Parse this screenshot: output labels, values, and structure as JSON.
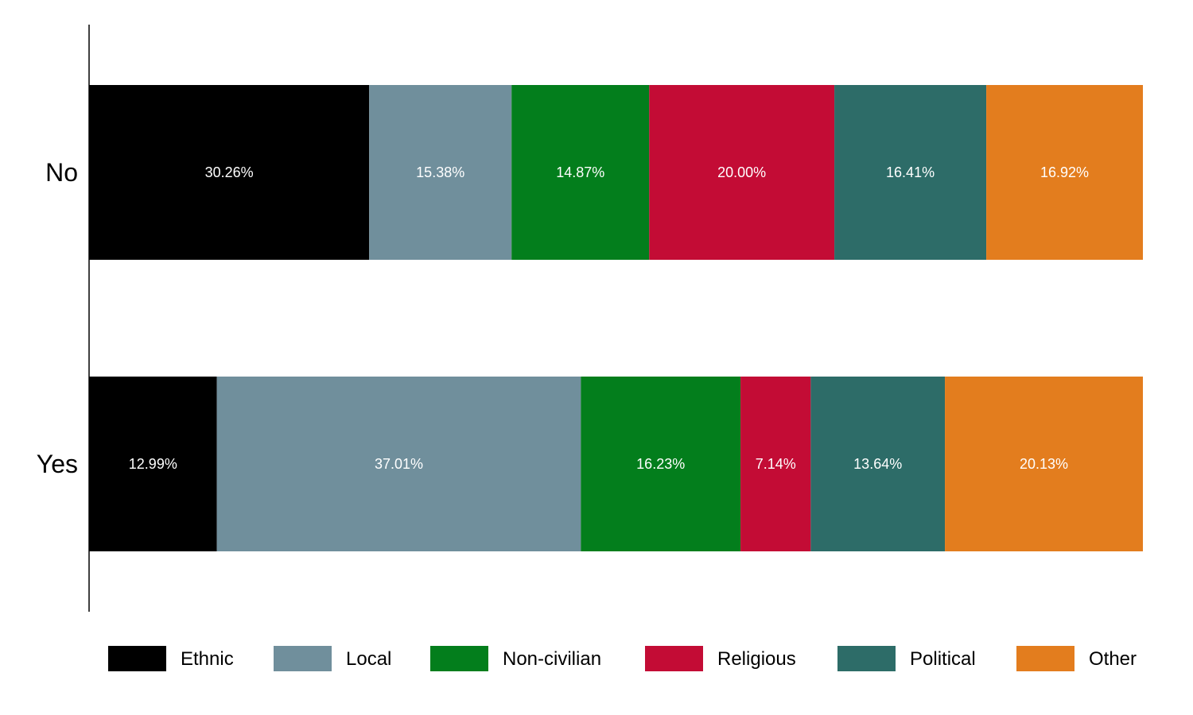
{
  "chart_data": {
    "type": "bar",
    "orientation": "horizontal",
    "stacked": true,
    "normalized_percent": true,
    "categories": [
      "No",
      "Yes"
    ],
    "series": [
      {
        "name": "Ethnic",
        "color": "#000000",
        "values": [
          30.26,
          12.99
        ],
        "labels": [
          "30.26%",
          "12.99%"
        ]
      },
      {
        "name": "Local",
        "color": "#708f9c",
        "values": [
          15.38,
          37.01
        ],
        "labels": [
          "15.38%",
          "37.01%"
        ]
      },
      {
        "name": "Non-civilian",
        "color": "#037e1c",
        "values": [
          14.87,
          16.23
        ],
        "labels": [
          "14.87%",
          "16.23%"
        ]
      },
      {
        "name": "Religious",
        "color": "#c30c35",
        "values": [
          20.0,
          7.14
        ],
        "labels": [
          "20.00%",
          "7.14%"
        ]
      },
      {
        "name": "Political",
        "color": "#2d6c68",
        "values": [
          16.41,
          13.64
        ],
        "labels": [
          "16.41%",
          "13.64%"
        ]
      },
      {
        "name": "Other",
        "color": "#e37d1e",
        "values": [
          16.92,
          20.13
        ],
        "labels": [
          "16.92%",
          "20.13%"
        ]
      }
    ],
    "xlim": [
      0,
      116.07
    ],
    "grid": false,
    "legend_position": "bottom"
  }
}
